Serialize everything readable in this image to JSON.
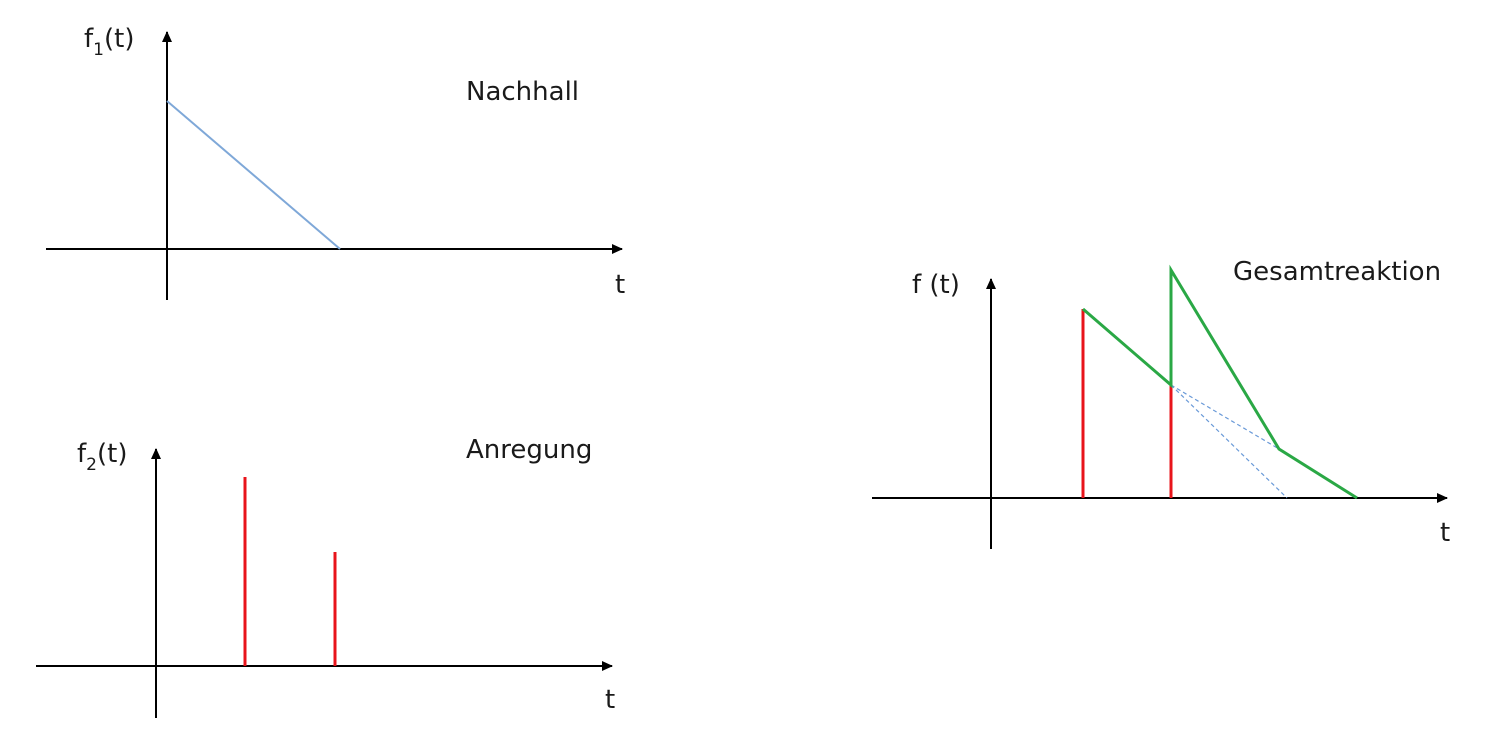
{
  "diagrams": {
    "nachhall": {
      "title": "Nachhall",
      "y_label": "f",
      "y_label_subscript": "1",
      "y_label_arg": "(t)",
      "x_label": "t"
    },
    "anregung": {
      "title": "Anregung",
      "y_label": "f",
      "y_label_subscript": "2",
      "y_label_arg": "(t)",
      "x_label": "t"
    },
    "gesamtreaktion": {
      "title": "Gesamtreaktion",
      "y_label": "f (t)",
      "x_label": "t"
    }
  },
  "colors": {
    "axis": "#000000",
    "decay_line": "#7fa8d8",
    "impulse": "#e8141b",
    "response": "#2aa845",
    "dashed_component": "#6a9ad8"
  }
}
